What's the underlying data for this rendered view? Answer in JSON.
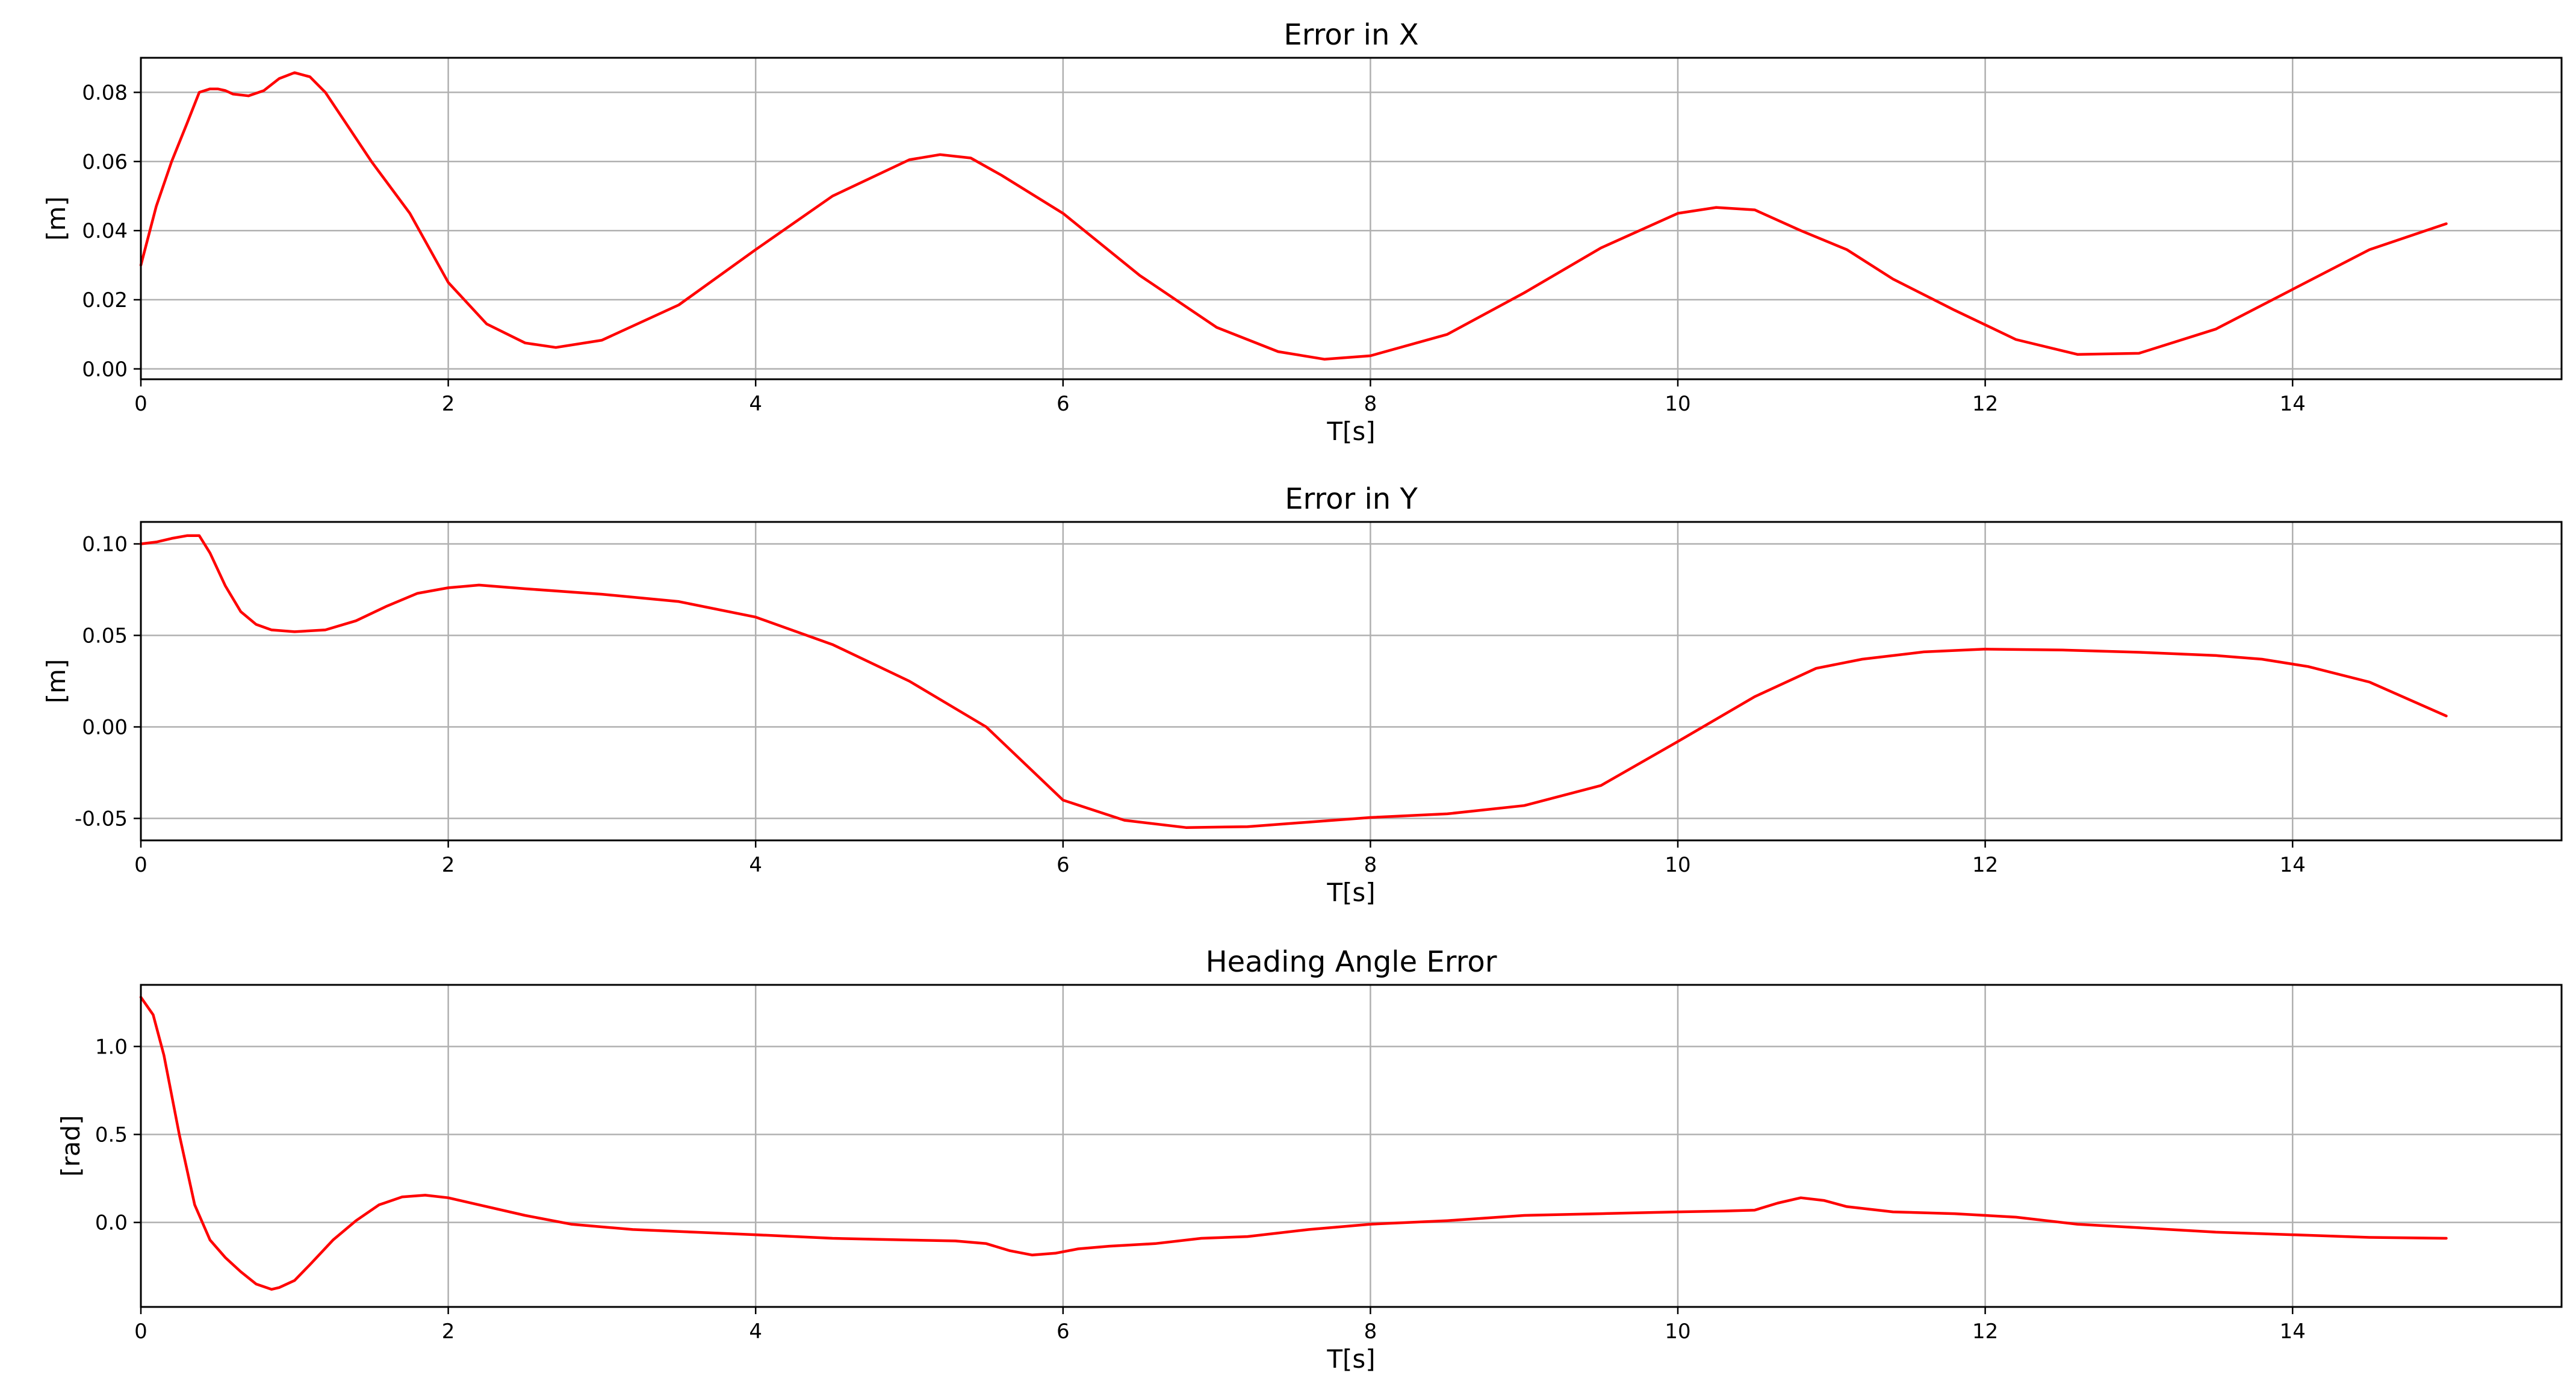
{
  "chart_data": [
    {
      "type": "line",
      "title": "Error in X",
      "xlabel": "T[s]",
      "ylabel": "[m]",
      "xlim": [
        0,
        15.75
      ],
      "ylim": [
        -0.003,
        0.09
      ],
      "xticks": [
        0,
        2,
        4,
        6,
        8,
        10,
        12,
        14
      ],
      "yticks": [
        0.0,
        0.02,
        0.04,
        0.06,
        0.08
      ],
      "ytick_labels": [
        "0.00",
        "0.02",
        "0.04",
        "0.06",
        "0.08"
      ],
      "grid": true,
      "series": [
        {
          "color": "#ff0000",
          "x": [
            0,
            0.1,
            0.2,
            0.3,
            0.38,
            0.45,
            0.5,
            0.55,
            0.6,
            0.7,
            0.8,
            0.9,
            1.0,
            1.1,
            1.2,
            1.35,
            1.5,
            1.75,
            2.0,
            2.25,
            2.5,
            2.7,
            3.0,
            3.5,
            4.0,
            4.5,
            5.0,
            5.2,
            5.4,
            5.6,
            6.0,
            6.5,
            7.0,
            7.4,
            7.7,
            8.0,
            8.5,
            9.0,
            9.5,
            10.0,
            10.25,
            10.5,
            10.8,
            11.1,
            11.4,
            11.8,
            12.2,
            12.6,
            13.0,
            13.5,
            14.0,
            14.5,
            15.0
          ],
          "y": [
            0.03,
            0.047,
            0.06,
            0.071,
            0.08,
            0.081,
            0.081,
            0.0805,
            0.0795,
            0.079,
            0.0805,
            0.084,
            0.0857,
            0.0845,
            0.08,
            0.07,
            0.06,
            0.045,
            0.025,
            0.013,
            0.0075,
            0.0062,
            0.0083,
            0.0185,
            0.0345,
            0.05,
            0.0605,
            0.062,
            0.061,
            0.056,
            0.045,
            0.027,
            0.012,
            0.005,
            0.0028,
            0.0038,
            0.01,
            0.022,
            0.035,
            0.045,
            0.0467,
            0.046,
            0.04,
            0.0345,
            0.026,
            0.017,
            0.0085,
            0.0042,
            0.0045,
            0.0115,
            0.023,
            0.0345,
            0.042
          ]
        }
      ]
    },
    {
      "type": "line",
      "title": "Error in Y",
      "xlabel": "T[s]",
      "ylabel": "[m]",
      "xlim": [
        0,
        15.75
      ],
      "ylim": [
        -0.062,
        0.112
      ],
      "xticks": [
        0,
        2,
        4,
        6,
        8,
        10,
        12,
        14
      ],
      "yticks": [
        -0.05,
        0.0,
        0.05,
        0.1
      ],
      "ytick_labels": [
        "-0.05",
        "0.00",
        "0.05",
        "0.10"
      ],
      "grid": true,
      "series": [
        {
          "color": "#ff0000",
          "x": [
            0,
            0.1,
            0.2,
            0.3,
            0.38,
            0.45,
            0.55,
            0.65,
            0.75,
            0.85,
            1.0,
            1.2,
            1.4,
            1.6,
            1.8,
            2.0,
            2.2,
            2.5,
            3.0,
            3.5,
            4.0,
            4.5,
            5.0,
            5.5,
            6.0,
            6.4,
            6.8,
            7.2,
            7.6,
            8.0,
            8.5,
            9.0,
            9.5,
            10.0,
            10.5,
            10.9,
            11.2,
            11.6,
            12.0,
            12.5,
            13.0,
            13.5,
            13.8,
            14.1,
            14.5,
            15.0
          ],
          "y": [
            0.1,
            0.101,
            0.103,
            0.1045,
            0.1045,
            0.095,
            0.077,
            0.063,
            0.056,
            0.053,
            0.052,
            0.053,
            0.058,
            0.066,
            0.073,
            0.076,
            0.0775,
            0.0755,
            0.0725,
            0.0685,
            0.06,
            0.045,
            0.025,
            0.0,
            -0.04,
            -0.051,
            -0.055,
            -0.0545,
            -0.052,
            -0.0495,
            -0.0475,
            -0.043,
            -0.032,
            -0.008,
            0.0165,
            0.032,
            0.037,
            0.041,
            0.0425,
            0.042,
            0.0408,
            0.039,
            0.037,
            0.033,
            0.0245,
            0.006
          ]
        }
      ]
    },
    {
      "type": "line",
      "title": "Heading Angle Error",
      "xlabel": "T[s]",
      "ylabel": "[rad]",
      "xlim": [
        0,
        15.75
      ],
      "ylim": [
        -0.48,
        1.35
      ],
      "xticks": [
        0,
        2,
        4,
        6,
        8,
        10,
        12,
        14
      ],
      "yticks": [
        0.0,
        0.5,
        1.0
      ],
      "ytick_labels": [
        "0.0",
        "0.5",
        "1.0"
      ],
      "grid": true,
      "series": [
        {
          "color": "#ff0000",
          "x": [
            0,
            0.08,
            0.15,
            0.25,
            0.35,
            0.45,
            0.55,
            0.65,
            0.75,
            0.85,
            0.9,
            1.0,
            1.1,
            1.25,
            1.4,
            1.55,
            1.7,
            1.85,
            2.0,
            2.2,
            2.5,
            2.8,
            3.2,
            3.6,
            4.0,
            4.5,
            5.0,
            5.3,
            5.5,
            5.65,
            5.8,
            5.95,
            6.1,
            6.3,
            6.6,
            6.9,
            7.2,
            7.6,
            8.0,
            8.5,
            9.0,
            9.5,
            10.0,
            10.3,
            10.5,
            10.65,
            10.8,
            10.95,
            11.1,
            11.4,
            11.8,
            12.2,
            12.6,
            13.0,
            13.5,
            14.0,
            14.5,
            15.0
          ],
          "y": [
            1.28,
            1.18,
            0.95,
            0.5,
            0.1,
            -0.1,
            -0.2,
            -0.28,
            -0.35,
            -0.38,
            -0.37,
            -0.33,
            -0.24,
            -0.1,
            0.01,
            0.1,
            0.145,
            0.155,
            0.14,
            0.1,
            0.04,
            -0.01,
            -0.04,
            -0.055,
            -0.07,
            -0.09,
            -0.1,
            -0.105,
            -0.12,
            -0.16,
            -0.185,
            -0.175,
            -0.15,
            -0.135,
            -0.12,
            -0.09,
            -0.08,
            -0.04,
            -0.01,
            0.01,
            0.04,
            0.05,
            0.06,
            0.065,
            0.07,
            0.11,
            0.14,
            0.125,
            0.09,
            0.06,
            0.05,
            0.03,
            -0.01,
            -0.03,
            -0.055,
            -0.07,
            -0.085,
            -0.09
          ]
        }
      ]
    }
  ]
}
